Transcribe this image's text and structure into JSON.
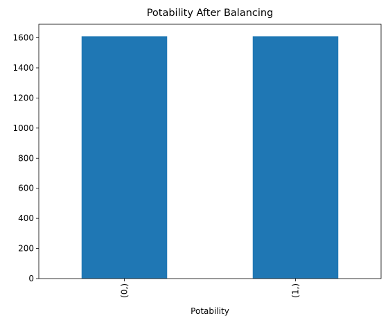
{
  "chart_data": {
    "type": "bar",
    "title": "Potability After Balancing",
    "xlabel": "Potability",
    "ylabel": "",
    "categories": [
      "(0,)",
      "(1,)"
    ],
    "values": [
      1610,
      1610
    ],
    "ylim": [
      0,
      1690
    ],
    "yticks": [
      0,
      200,
      400,
      600,
      800,
      1000,
      1200,
      1400,
      1600
    ],
    "bar_color": "#1f77b4",
    "grid": false,
    "legend": "none"
  }
}
